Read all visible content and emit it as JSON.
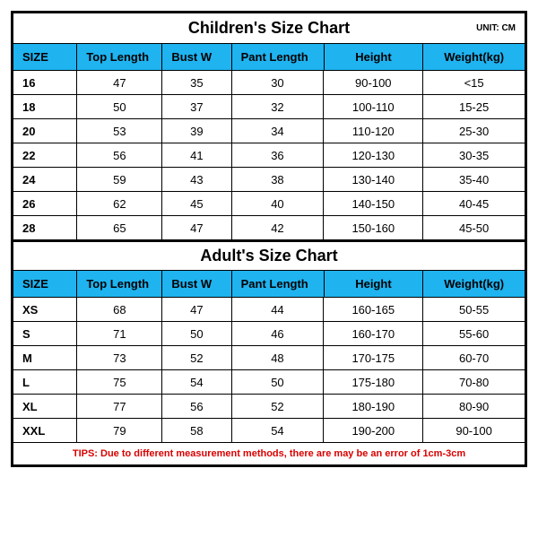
{
  "unit_label": "UNIT: CM",
  "columns": [
    "SIZE",
    "Top Length",
    "Bust W",
    "Pant Length",
    "Height",
    "Weight(kg)"
  ],
  "children": {
    "title": "Children's Size Chart",
    "rows": [
      {
        "size": "16",
        "top": "47",
        "bust": "35",
        "pant": "30",
        "height": "90-100",
        "weight": "<15"
      },
      {
        "size": "18",
        "top": "50",
        "bust": "37",
        "pant": "32",
        "height": "100-110",
        "weight": "15-25"
      },
      {
        "size": "20",
        "top": "53",
        "bust": "39",
        "pant": "34",
        "height": "110-120",
        "weight": "25-30"
      },
      {
        "size": "22",
        "top": "56",
        "bust": "41",
        "pant": "36",
        "height": "120-130",
        "weight": "30-35"
      },
      {
        "size": "24",
        "top": "59",
        "bust": "43",
        "pant": "38",
        "height": "130-140",
        "weight": "35-40"
      },
      {
        "size": "26",
        "top": "62",
        "bust": "45",
        "pant": "40",
        "height": "140-150",
        "weight": "40-45"
      },
      {
        "size": "28",
        "top": "65",
        "bust": "47",
        "pant": "42",
        "height": "150-160",
        "weight": "45-50"
      }
    ]
  },
  "adult": {
    "title": "Adult's Size Chart",
    "rows": [
      {
        "size": "XS",
        "top": "68",
        "bust": "47",
        "pant": "44",
        "height": "160-165",
        "weight": "50-55"
      },
      {
        "size": "S",
        "top": "71",
        "bust": "50",
        "pant": "46",
        "height": "160-170",
        "weight": "55-60"
      },
      {
        "size": "M",
        "top": "73",
        "bust": "52",
        "pant": "48",
        "height": "170-175",
        "weight": "60-70"
      },
      {
        "size": "L",
        "top": "75",
        "bust": "54",
        "pant": "50",
        "height": "175-180",
        "weight": "70-80"
      },
      {
        "size": "XL",
        "top": "77",
        "bust": "56",
        "pant": "52",
        "height": "180-190",
        "weight": "80-90"
      },
      {
        "size": "XXL",
        "top": "79",
        "bust": "58",
        "pant": "54",
        "height": "190-200",
        "weight": "90-100"
      }
    ]
  },
  "tips": "TIPS: Due to different measurement methods, there are may be an error of 1cm-3cm",
  "colors": {
    "header_bg": "#1fb3f0",
    "border": "#000000",
    "tips_text": "#d90000",
    "background": "#ffffff"
  }
}
